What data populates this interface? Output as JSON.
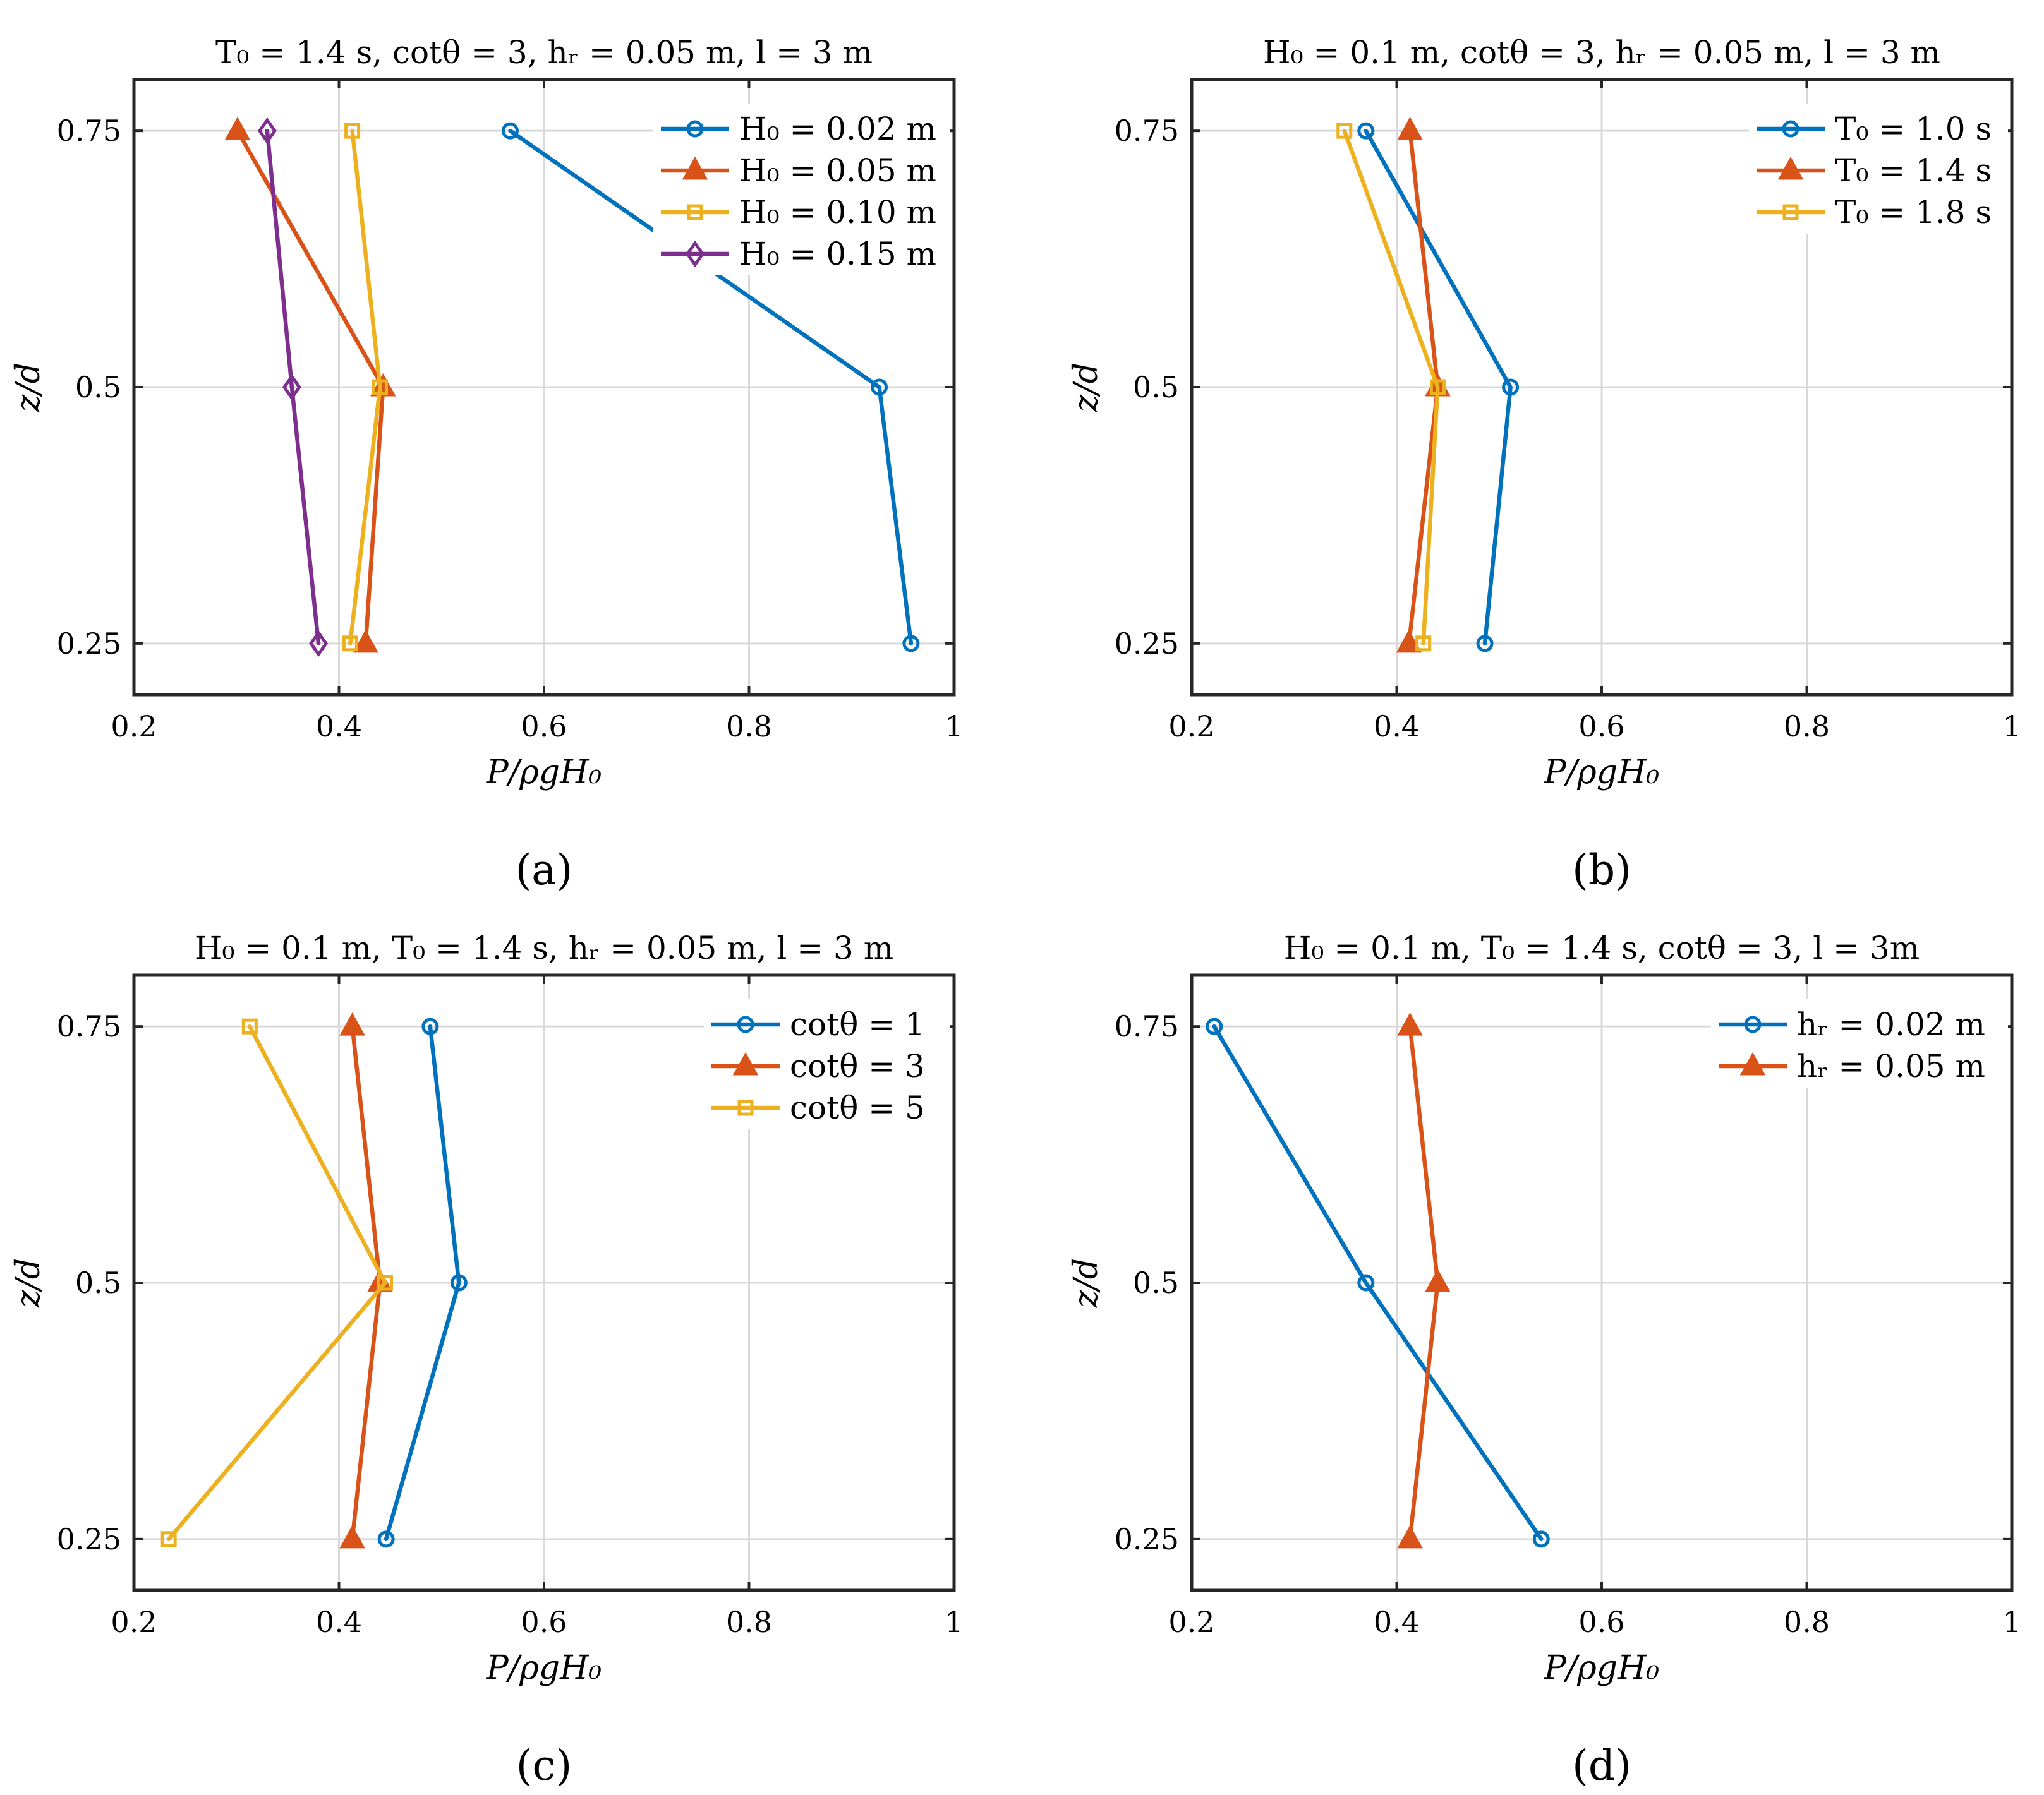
{
  "chart_data": [
    {
      "type": "line",
      "panel": "(a)",
      "title": "T₀ = 1.4 s, cotθ = 3, hᵣ = 0.05 m, l = 3 m",
      "xlabel": "P/ρgH₀",
      "ylabel": "z/d",
      "xlim": [
        0.2,
        1
      ],
      "ylim": [
        0.2,
        0.8
      ],
      "xticks": [
        "0.2",
        "0.4",
        "0.6",
        "0.8",
        "1"
      ],
      "yticks": [
        "0.25",
        "0.5",
        "0.75"
      ],
      "grid": true,
      "legend_position": "top-right",
      "series": [
        {
          "name": "H₀ = 0.02 m",
          "color": "#0072BD",
          "marker": "circle",
          "points": [
            [
              0.567,
              0.75
            ],
            [
              0.927,
              0.5
            ],
            [
              0.958,
              0.25
            ]
          ]
        },
        {
          "name": "H₀ = 0.05 m",
          "color": "#D95319",
          "marker": "triangle",
          "points": [
            [
              0.301,
              0.75
            ],
            [
              0.443,
              0.5
            ],
            [
              0.426,
              0.25
            ]
          ]
        },
        {
          "name": "H₀ = 0.10 m",
          "color": "#EDB120",
          "marker": "square",
          "points": [
            [
              0.413,
              0.75
            ],
            [
              0.44,
              0.5
            ],
            [
              0.411,
              0.25
            ]
          ]
        },
        {
          "name": "H₀ = 0.15 m",
          "color": "#7E2F8E",
          "marker": "diamond",
          "points": [
            [
              0.33,
              0.75
            ],
            [
              0.354,
              0.5
            ],
            [
              0.38,
              0.25
            ]
          ]
        }
      ]
    },
    {
      "type": "line",
      "panel": "(b)",
      "title": "H₀ = 0.1 m, cotθ = 3, hᵣ = 0.05 m, l = 3 m",
      "xlabel": "P/ρgH₀",
      "ylabel": "z/d",
      "xlim": [
        0.2,
        1
      ],
      "ylim": [
        0.2,
        0.8
      ],
      "xticks": [
        "0.2",
        "0.4",
        "0.6",
        "0.8",
        "1"
      ],
      "yticks": [
        "0.25",
        "0.5",
        "0.75"
      ],
      "grid": true,
      "legend_position": "top-right",
      "series": [
        {
          "name": "T₀ = 1.0 s",
          "color": "#0072BD",
          "marker": "circle",
          "points": [
            [
              0.37,
              0.75
            ],
            [
              0.511,
              0.5
            ],
            [
              0.486,
              0.25
            ]
          ]
        },
        {
          "name": "T₀ = 1.4 s",
          "color": "#D95319",
          "marker": "triangle",
          "points": [
            [
              0.413,
              0.75
            ],
            [
              0.44,
              0.5
            ],
            [
              0.412,
              0.25
            ]
          ]
        },
        {
          "name": "T₀ = 1.8 s",
          "color": "#EDB120",
          "marker": "square",
          "points": [
            [
              0.349,
              0.75
            ],
            [
              0.44,
              0.5
            ],
            [
              0.426,
              0.25
            ]
          ]
        }
      ]
    },
    {
      "type": "line",
      "panel": "(c)",
      "title": "H₀ = 0.1 m, T₀ = 1.4 s, hᵣ = 0.05 m, l = 3 m",
      "xlabel": "P/ρgH₀",
      "ylabel": "z/d",
      "xlim": [
        0.2,
        1
      ],
      "ylim": [
        0.2,
        0.8
      ],
      "xticks": [
        "0.2",
        "0.4",
        "0.6",
        "0.8",
        "1"
      ],
      "yticks": [
        "0.25",
        "0.5",
        "0.75"
      ],
      "grid": true,
      "legend_position": "top-right",
      "series": [
        {
          "name": "cotθ = 1",
          "color": "#0072BD",
          "marker": "circle",
          "points": [
            [
              0.489,
              0.75
            ],
            [
              0.517,
              0.5
            ],
            [
              0.446,
              0.25
            ]
          ]
        },
        {
          "name": "cotθ = 3",
          "color": "#D95319",
          "marker": "triangle",
          "points": [
            [
              0.413,
              0.75
            ],
            [
              0.44,
              0.5
            ],
            [
              0.413,
              0.25
            ]
          ]
        },
        {
          "name": "cotθ = 5",
          "color": "#EDB120",
          "marker": "square",
          "points": [
            [
              0.313,
              0.75
            ],
            [
              0.445,
              0.5
            ],
            [
              0.234,
              0.25
            ]
          ]
        }
      ]
    },
    {
      "type": "line",
      "panel": "(d)",
      "title": "H₀ = 0.1 m, T₀ = 1.4 s, cotθ = 3, l = 3m",
      "xlabel": "P/ρgH₀",
      "ylabel": "z/d",
      "xlim": [
        0.2,
        1
      ],
      "ylim": [
        0.2,
        0.8
      ],
      "xticks": [
        "0.2",
        "0.4",
        "0.6",
        "0.8",
        "1"
      ],
      "yticks": [
        "0.25",
        "0.5",
        "0.75"
      ],
      "grid": true,
      "legend_position": "top-right",
      "series": [
        {
          "name": "hᵣ = 0.02 m",
          "color": "#0072BD",
          "marker": "circle",
          "points": [
            [
              0.222,
              0.75
            ],
            [
              0.37,
              0.5
            ],
            [
              0.541,
              0.25
            ]
          ]
        },
        {
          "name": "hᵣ = 0.05 m",
          "color": "#D95319",
          "marker": "triangle",
          "points": [
            [
              0.413,
              0.75
            ],
            [
              0.44,
              0.5
            ],
            [
              0.413,
              0.25
            ]
          ]
        }
      ]
    }
  ]
}
